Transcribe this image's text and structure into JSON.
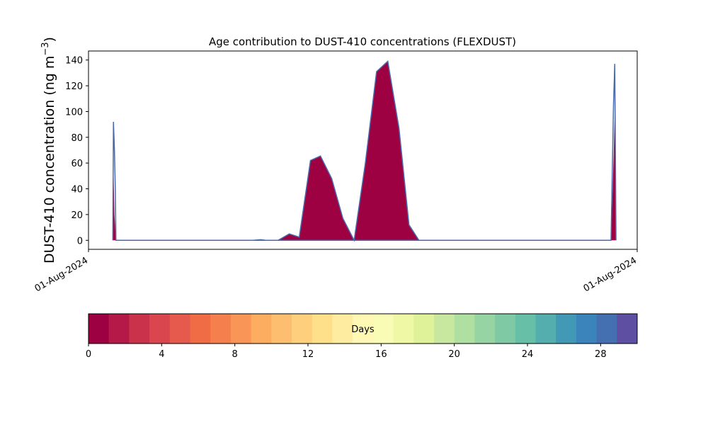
{
  "chart_data": {
    "type": "area",
    "title": "Age contribution to DUST-410 concentrations (FLEXDUST)",
    "ylabel": "DUST-410 concentration (ng m",
    "ylabel_sup": "−3",
    "ylabel_close": ")",
    "xlabel": "",
    "ylim": [
      -7,
      147
    ],
    "yticks": [
      0,
      20,
      40,
      60,
      80,
      100,
      120,
      140
    ],
    "x_tick_labels": [
      "01-Aug-2024",
      "01-Aug-2024"
    ],
    "fill_color": "#9e0142",
    "line_color": "#4a6aa8",
    "x_unit": "hours",
    "xlim": [
      0,
      44
    ],
    "series": [
      {
        "total": [
          [
            1.95,
            0
          ],
          [
            2.0,
            92
          ],
          [
            2.08,
            70
          ],
          [
            2.15,
            40
          ],
          [
            2.2,
            0
          ],
          [
            13.2,
            0
          ],
          [
            13.8,
            0.5
          ],
          [
            14.2,
            0
          ],
          [
            15.2,
            0
          ],
          [
            16.1,
            5
          ],
          [
            16.9,
            2.5
          ],
          [
            17.8,
            62
          ],
          [
            18.6,
            65.5
          ],
          [
            19.5,
            48
          ],
          [
            20.4,
            17
          ],
          [
            21.3,
            0
          ],
          [
            22.2,
            60
          ],
          [
            23.1,
            131
          ],
          [
            24.0,
            139
          ],
          [
            24.9,
            87
          ],
          [
            25.7,
            12
          ],
          [
            26.5,
            0
          ],
          [
            41.9,
            0
          ],
          [
            42.1,
            105
          ],
          [
            42.2,
            137
          ],
          [
            42.3,
            0
          ]
        ],
        "age_0_1": [
          [
            1.95,
            0
          ],
          [
            2.0,
            57
          ],
          [
            2.08,
            20
          ],
          [
            2.2,
            0
          ],
          [
            13.2,
            0
          ],
          [
            13.8,
            0.5
          ],
          [
            14.2,
            0
          ],
          [
            15.2,
            0
          ],
          [
            16.1,
            5
          ],
          [
            16.9,
            2.5
          ],
          [
            17.8,
            62
          ],
          [
            18.6,
            65.5
          ],
          [
            19.5,
            48
          ],
          [
            20.4,
            17
          ],
          [
            21.3,
            0
          ],
          [
            22.2,
            60
          ],
          [
            23.1,
            131
          ],
          [
            24.0,
            139
          ],
          [
            24.9,
            87
          ],
          [
            25.7,
            12
          ],
          [
            26.5,
            0
          ],
          [
            41.9,
            0
          ],
          [
            42.0,
            30
          ],
          [
            42.1,
            62
          ],
          [
            42.2,
            100
          ],
          [
            42.3,
            0
          ]
        ]
      }
    ],
    "colorbar": {
      "label": "Days",
      "min": 0,
      "max": 30,
      "ticks": [
        0,
        4,
        8,
        12,
        16,
        20,
        24,
        28
      ],
      "colors": [
        "#9e0142",
        "#b41947",
        "#c9324a",
        "#da464d",
        "#e55a4c",
        "#ef6c45",
        "#f6804d",
        "#f99657",
        "#fcad60",
        "#fdbf6f",
        "#fed07e",
        "#fee08b",
        "#feeda1",
        "#fff8b4",
        "#f8fcb4",
        "#eef8a5",
        "#dff299",
        "#c7e89e",
        "#b0dfa2",
        "#97d4a4",
        "#7fcaa5",
        "#68bfa7",
        "#53aead",
        "#4199b6",
        "#3a84bb",
        "#4470b1",
        "#5e4fa2"
      ]
    }
  }
}
